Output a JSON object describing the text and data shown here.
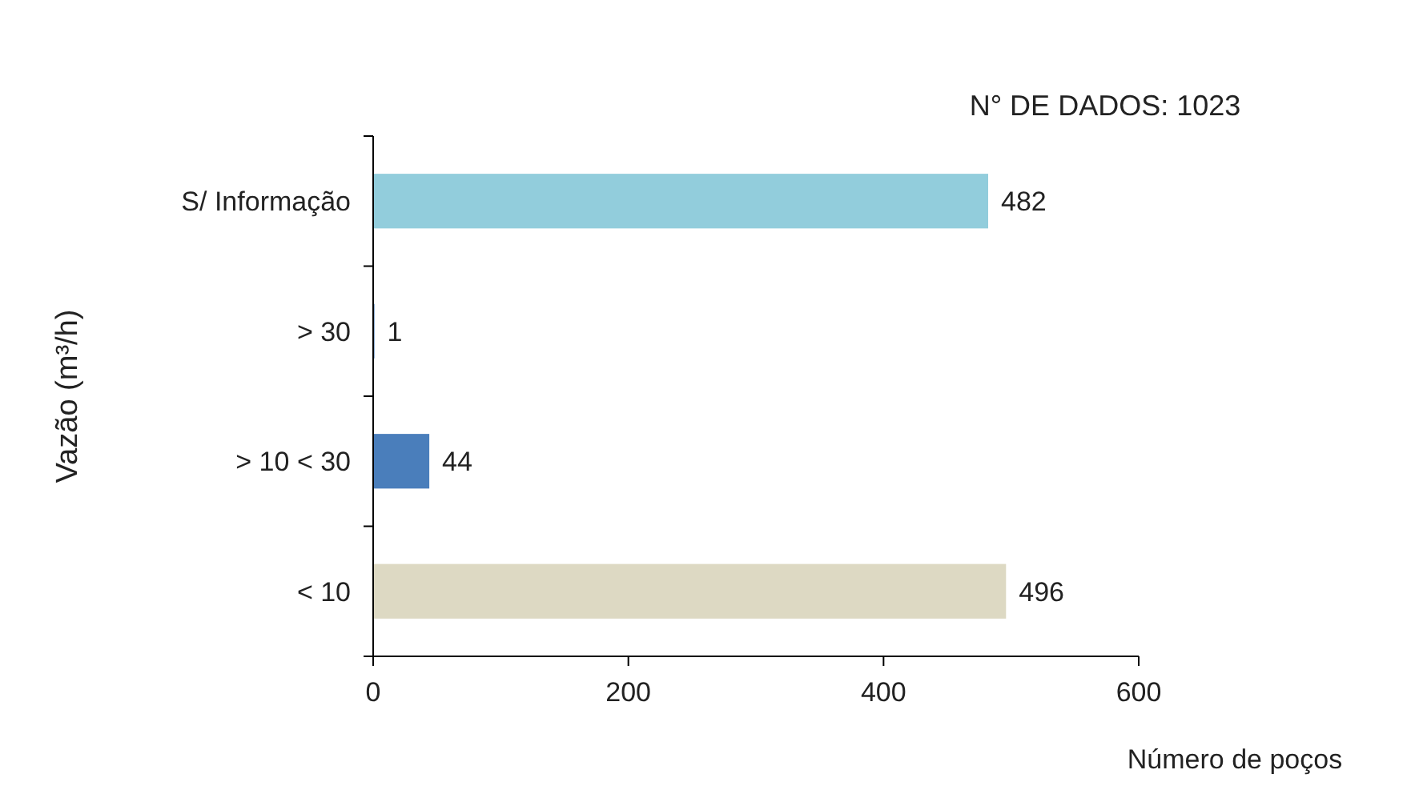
{
  "chart_data": {
    "type": "bar",
    "orientation": "horizontal",
    "categories": [
      "S/ Informação",
      "> 30",
      "> 10 < 30",
      "< 10"
    ],
    "values": [
      482,
      1,
      44,
      496
    ],
    "colors": [
      "#92cddc",
      "#4a7ebb",
      "#4a7ebb",
      "#ddd9c3"
    ],
    "xlim": [
      0,
      600
    ],
    "xticks": [
      0,
      200,
      400,
      600
    ],
    "xlabel": "Número de poços",
    "ylabel": "Vazão (m³/h)",
    "annotations": [
      "N° DE DADOS: 1023"
    ],
    "data_labels": true
  }
}
